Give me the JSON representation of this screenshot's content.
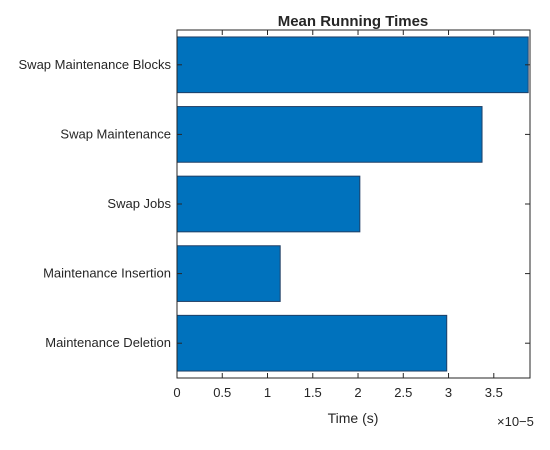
{
  "chart_data": {
    "type": "bar",
    "orientation": "horizontal",
    "title": "Mean Running Times",
    "xlabel": "Time (s)",
    "ylabel": "",
    "x_exponent_label": "×10−5",
    "categories": [
      "Swap Maintenance Blocks",
      "Swap Maintenance",
      "Swap Jobs",
      "Maintenance Insertion",
      "Maintenance Deletion"
    ],
    "values": [
      3.88e-05,
      3.37e-05,
      2.02e-05,
      1.14e-05,
      2.98e-05
    ],
    "xlim": [
      0,
      3.9e-05
    ],
    "xticks": [
      0,
      5e-06,
      1e-05,
      1.5e-05,
      2e-05,
      2.5e-05,
      3e-05,
      3.5e-05
    ],
    "xtick_labels": [
      "0",
      "0.5",
      "1",
      "1.5",
      "2",
      "2.5",
      "3",
      "3.5"
    ],
    "grid": false,
    "legend": false,
    "bar_color": "#0072BD"
  }
}
